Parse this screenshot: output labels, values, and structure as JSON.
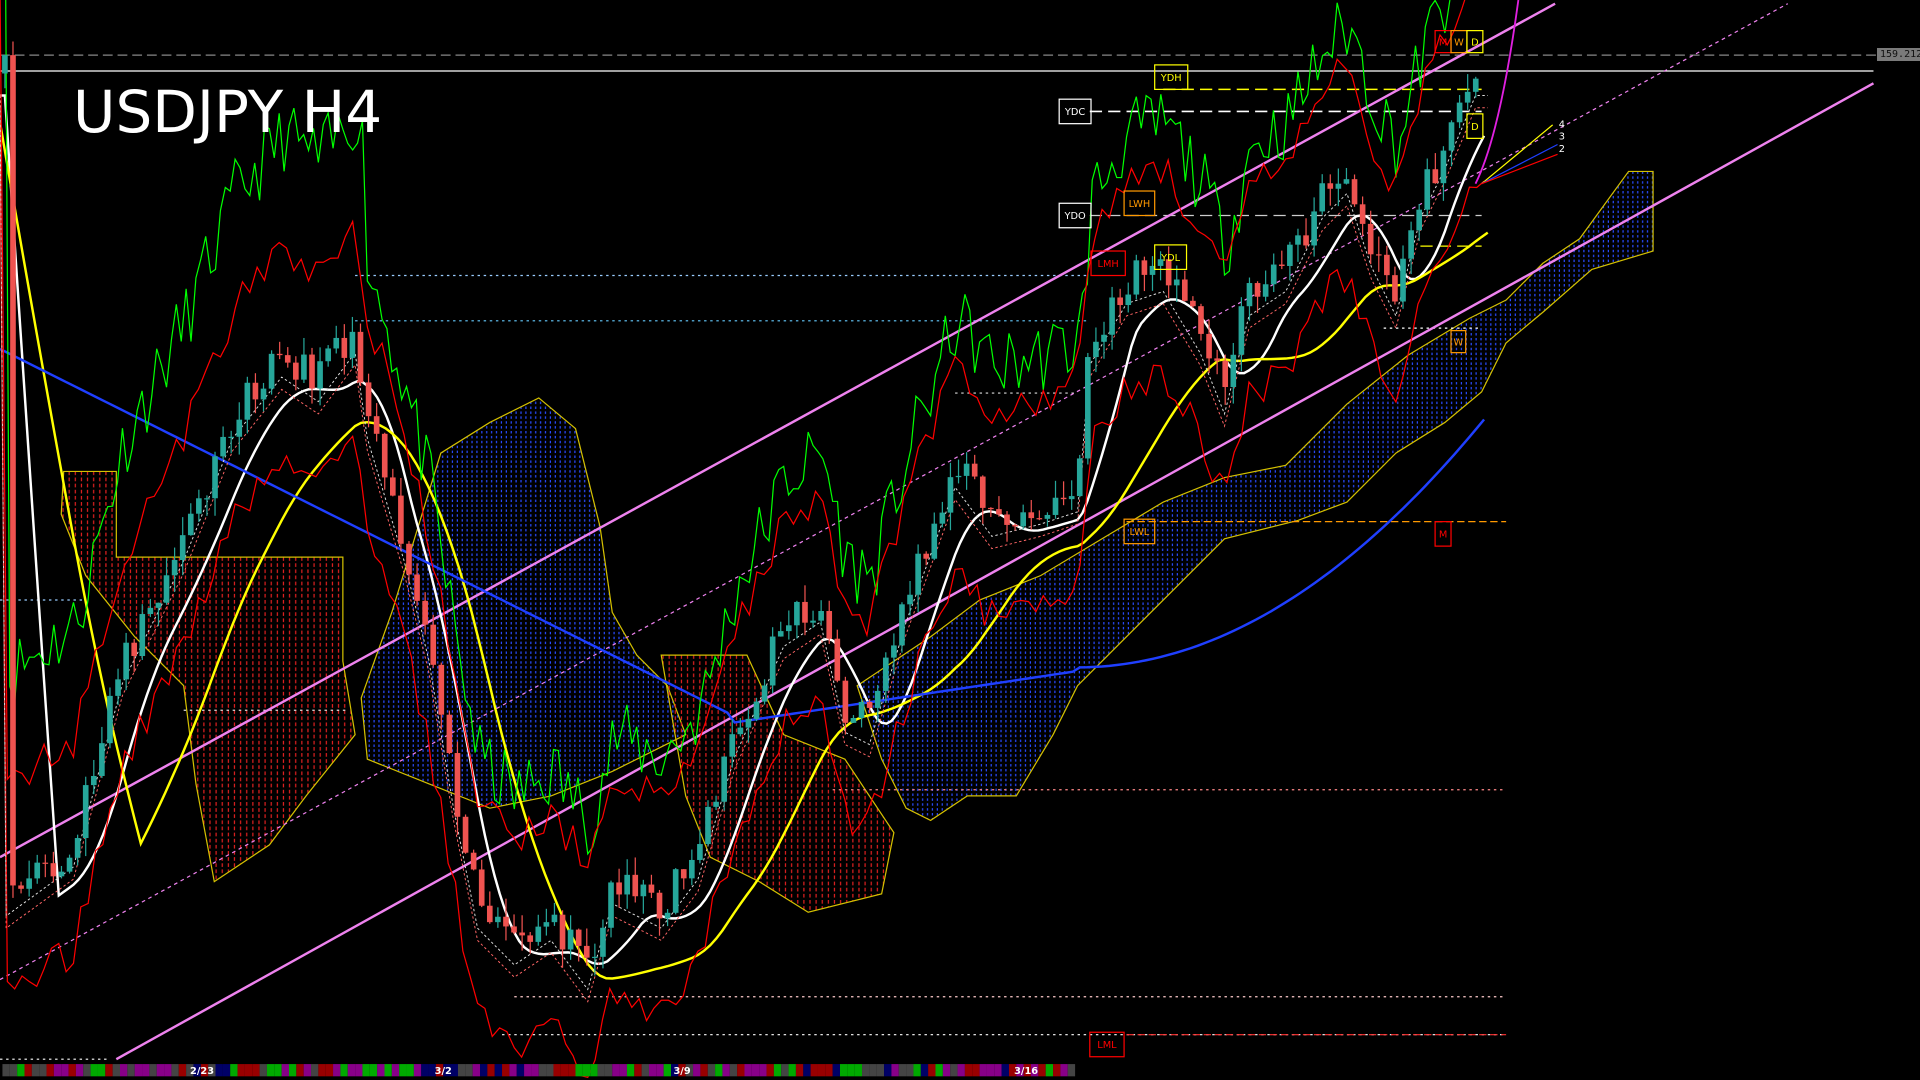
{
  "chart_title": "USDJPY H4",
  "current_price": "159.212",
  "level_labels": {
    "ydh": "YDH",
    "ydc": "YDC",
    "ydo": "YDO",
    "lwh": "LWH",
    "ydl": "YDL",
    "lmh": "LMH",
    "lwl": "LWL",
    "lml": "LML",
    "m_top": "M",
    "w_top": "W",
    "d_top": "D",
    "d_mid": "D",
    "w_mid": "W",
    "m_mid": "M"
  },
  "ma_labels": [
    "4",
    "3",
    "2"
  ],
  "time_axis": [
    "2/23",
    "3/2",
    "3/9",
    "3/16"
  ],
  "colors": {
    "background": "#000000",
    "bull_candle": "#26a69a",
    "bear_candle": "#ef5350",
    "channel": "#ee82ee",
    "ma_white": "#ffffff",
    "ma_yellow": "#ffff00",
    "ma_blue": "#1f3fff",
    "cloud_bull": "#2a4cff",
    "cloud_bear": "#ff2a2a",
    "chikou": "#00ff00",
    "bands": "#ff0000"
  }
}
